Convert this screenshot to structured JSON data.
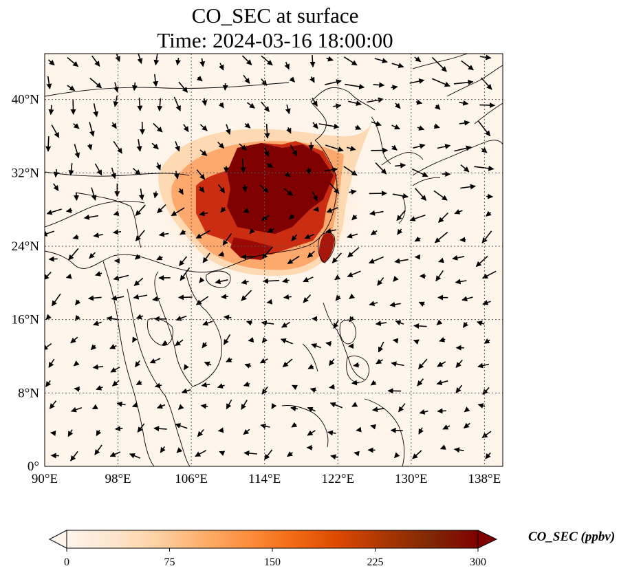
{
  "title": {
    "line1": "CO_SEC at surface",
    "line2": "Time: 2024-03-16 18:00:00"
  },
  "map": {
    "lon_range": [
      90,
      140
    ],
    "lat_range": [
      0,
      45
    ],
    "lon_ticks": [
      "90°E",
      "98°E",
      "106°E",
      "114°E",
      "122°E",
      "130°E",
      "138°E"
    ],
    "lon_tick_values": [
      90,
      98,
      106,
      114,
      122,
      130,
      138
    ],
    "lat_ticks": [
      "0°",
      "8°N",
      "16°N",
      "24°N",
      "32°N",
      "40°N"
    ],
    "lat_tick_values": [
      0,
      8,
      16,
      24,
      32,
      40
    ],
    "gridlines": true,
    "background_color": "#fff5eb",
    "coastline_color": "#000000",
    "plume_color": "#7f0000"
  },
  "colorbar": {
    "label": "CO_SEC (ppbv)",
    "ticks": [
      "0",
      "75",
      "150",
      "225",
      "300"
    ],
    "range": [
      0,
      300
    ],
    "extend": "both",
    "colors": [
      "#fff5eb",
      "#fee6ce",
      "#fdd0a2",
      "#fdae6b",
      "#fd8d3c",
      "#f16913",
      "#d94801",
      "#a63603",
      "#7f2704",
      "#7f0000"
    ]
  }
}
